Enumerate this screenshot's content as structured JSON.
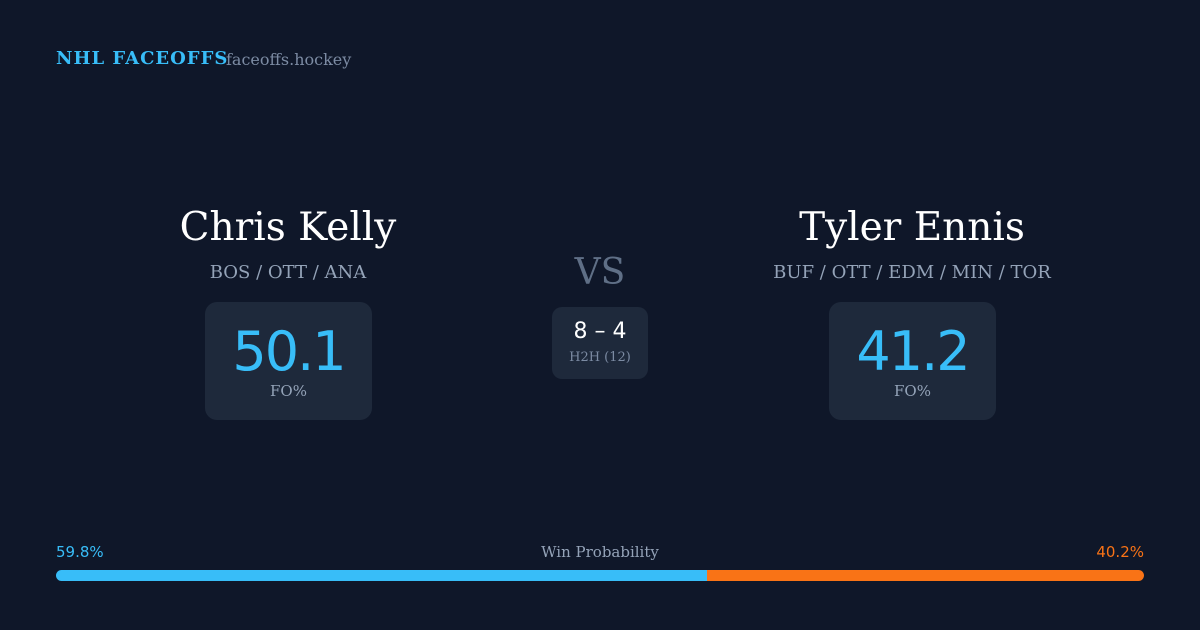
{
  "header": {
    "brand": "NHL FACEOFFS",
    "site": "faceoffs.hockey"
  },
  "players": [
    {
      "name": "Chris Kelly",
      "teams": "BOS / OTT / ANA",
      "fo_pct": 50.1,
      "fo_label": "FO%"
    },
    {
      "name": "Tyler Ennis",
      "teams": "BUF / OTT / EDM / MIN / TOR",
      "fo_pct": 41.2,
      "fo_label": "FO%"
    }
  ],
  "versus": "VS",
  "head_to_head": {
    "record": "8 – 4",
    "label": "H2H (12)"
  },
  "win_probability": {
    "title": "Win Probability",
    "values": [
      59.8,
      40.2
    ],
    "value_labels": [
      "59.8%",
      "40.2%"
    ],
    "colors": [
      "#38bdf8",
      "#f97316"
    ]
  }
}
